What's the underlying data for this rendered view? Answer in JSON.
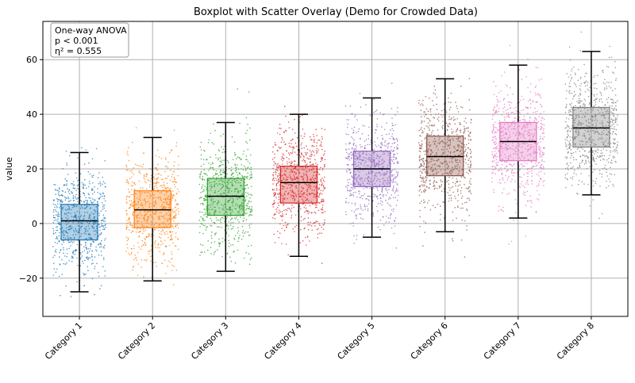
{
  "chart_data": {
    "type": "boxplot",
    "title": "Boxplot with Scatter Overlay (Demo for Crowded Data)",
    "xlabel": "",
    "ylabel": "value",
    "ylim": [
      -34,
      74
    ],
    "yticks": [
      -20,
      0,
      20,
      40,
      60
    ],
    "grid": true,
    "annotation": [
      "One-way ANOVA",
      "p < 0.001",
      "η² = 0.555"
    ],
    "categories": [
      "Category 1",
      "Category 2",
      "Category 3",
      "Category 4",
      "Category 5",
      "Category 6",
      "Category 7",
      "Category 8"
    ],
    "colors": [
      "#1f77b4",
      "#ff7f0e",
      "#2ca02c",
      "#d62728",
      "#9467bd",
      "#8c564b",
      "#e377c2",
      "#7f7f7f"
    ],
    "boxes": [
      {
        "whisker_low": -25,
        "q1": -6,
        "median": 1,
        "q3": 7,
        "whisker_high": 26
      },
      {
        "whisker_low": -21,
        "q1": -1.5,
        "median": 5,
        "q3": 12,
        "whisker_high": 31.5
      },
      {
        "whisker_low": -17.5,
        "q1": 3,
        "median": 10,
        "q3": 16.5,
        "whisker_high": 37
      },
      {
        "whisker_low": -12,
        "q1": 7.5,
        "median": 15,
        "q3": 21,
        "whisker_high": 40
      },
      {
        "whisker_low": -5,
        "q1": 13.5,
        "median": 20,
        "q3": 26.5,
        "whisker_high": 46
      },
      {
        "whisker_low": -3,
        "q1": 17.5,
        "median": 24.5,
        "q3": 32,
        "whisker_high": 53
      },
      {
        "whisker_low": 2,
        "q1": 23,
        "median": 30,
        "q3": 37,
        "whisker_high": 58
      },
      {
        "whisker_low": 10.5,
        "q1": 28,
        "median": 35,
        "q3": 42.5,
        "whisker_high": 63
      }
    ]
  }
}
